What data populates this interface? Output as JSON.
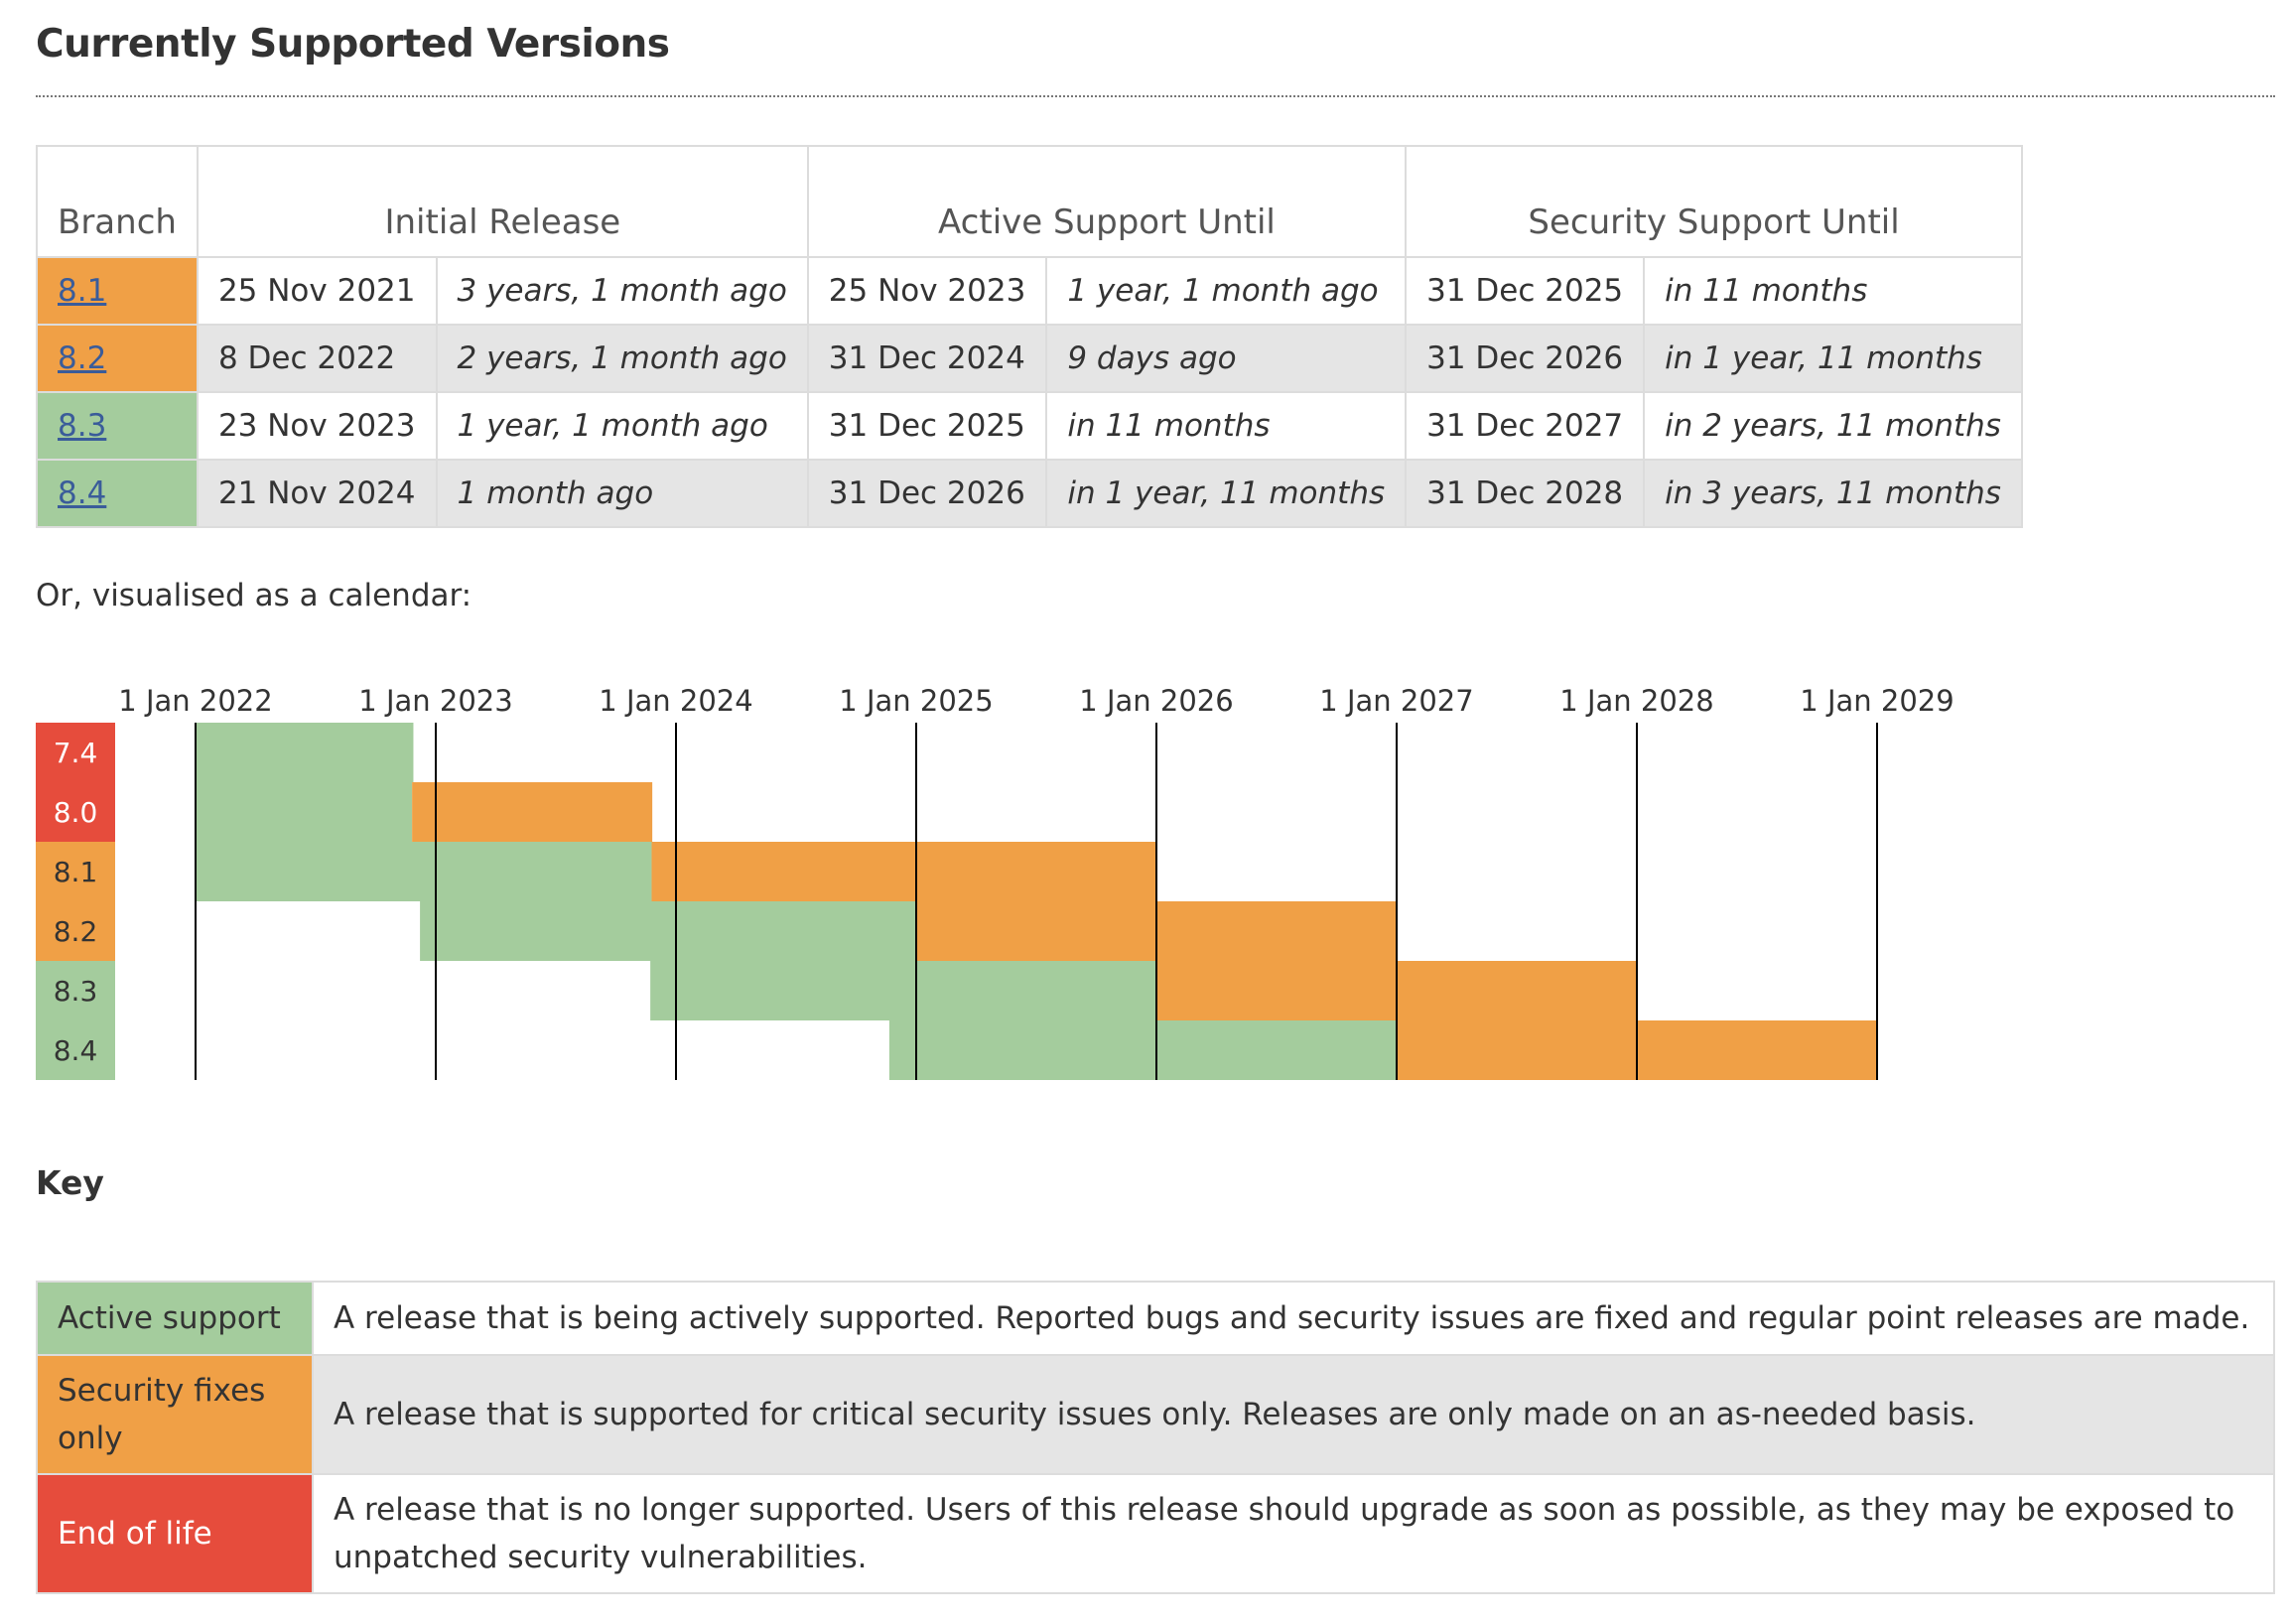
{
  "title": "Currently Supported Versions",
  "colors": {
    "active": "#a4cc9d",
    "security": "#f0a046",
    "eol": "#e64c3c"
  },
  "table": {
    "headers": {
      "branch": "Branch",
      "initial_release": "Initial Release",
      "active_support": "Active Support Until",
      "security_support": "Security Support Until"
    },
    "rows": [
      {
        "branch": "8.1",
        "status": "security",
        "initial_date": "25 Nov 2021",
        "initial_rel": "3 years, 1 month ago",
        "active_date": "25 Nov 2023",
        "active_rel": "1 year, 1 month ago",
        "security_date": "31 Dec 2025",
        "security_rel": "in 11 months"
      },
      {
        "branch": "8.2",
        "status": "security",
        "initial_date": "8 Dec 2022",
        "initial_rel": "2 years, 1 month ago",
        "active_date": "31 Dec 2024",
        "active_rel": "9 days ago",
        "security_date": "31 Dec 2026",
        "security_rel": "in 1 year, 11 months"
      },
      {
        "branch": "8.3",
        "status": "active",
        "initial_date": "23 Nov 2023",
        "initial_rel": "1 year, 1 month ago",
        "active_date": "31 Dec 2025",
        "active_rel": "in 11 months",
        "security_date": "31 Dec 2027",
        "security_rel": "in 2 years, 11 months"
      },
      {
        "branch": "8.4",
        "status": "active",
        "initial_date": "21 Nov 2024",
        "initial_rel": "1 month ago",
        "active_date": "31 Dec 2026",
        "active_rel": "in 1 year, 11 months",
        "security_date": "31 Dec 2028",
        "security_rel": "in 3 years, 11 months"
      }
    ]
  },
  "intro_text": "Or, visualised as a calendar:",
  "calendar": {
    "year_labels": [
      "1 Jan 2022",
      "1 Jan 2023",
      "1 Jan 2024",
      "1 Jan 2025",
      "1 Jan 2026",
      "1 Jan 2027",
      "1 Jan 2028",
      "1 Jan 2029"
    ],
    "branches": [
      {
        "name": "7.4",
        "status": "eol",
        "release": "2022-01-01",
        "active_until": "2022-11-28",
        "security_until": "2022-11-28"
      },
      {
        "name": "8.0",
        "status": "eol",
        "release": "2022-01-01",
        "active_until": "2022-11-26",
        "security_until": "2023-11-26"
      },
      {
        "name": "8.1",
        "status": "security",
        "release": "2022-01-01",
        "active_until": "2023-11-25",
        "security_until": "2025-12-31"
      },
      {
        "name": "8.2",
        "status": "security",
        "release": "2022-12-08",
        "active_until": "2024-12-31",
        "security_until": "2026-12-31"
      },
      {
        "name": "8.3",
        "status": "active",
        "release": "2023-11-23",
        "active_until": "2025-12-31",
        "security_until": "2027-12-31"
      },
      {
        "name": "8.4",
        "status": "active",
        "release": "2024-11-21",
        "active_until": "2026-12-31",
        "security_until": "2028-12-31"
      }
    ]
  },
  "key": {
    "title": "Key",
    "rows": [
      {
        "label": "Active support",
        "status": "active",
        "desc": "A release that is being actively supported. Reported bugs and security issues are fixed and regular point releases are made."
      },
      {
        "label": "Security fixes only",
        "status": "security",
        "desc": "A release that is supported for critical security issues only. Releases are only made on an as-needed basis."
      },
      {
        "label": "End of life",
        "status": "eol",
        "desc": "A release that is no longer supported. Users of this release should upgrade as soon as possible, as they may be exposed to unpatched security vulnerabilities."
      }
    ]
  }
}
